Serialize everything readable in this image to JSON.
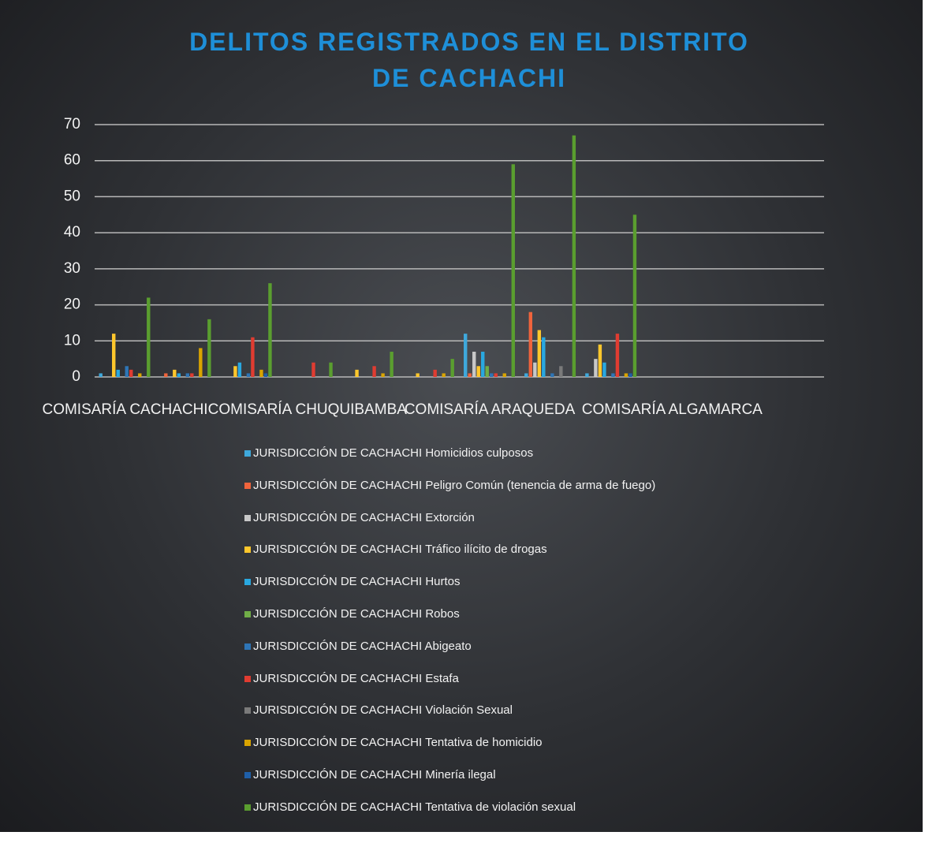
{
  "chart_data": {
    "type": "bar",
    "title": "DELITOS REGISTRADOS EN EL DISTRITO DE CACHACHI",
    "categories": [
      "COMISARÍA CACHACHI",
      null,
      null,
      "COMISARÍA CHUQUIBAMBA",
      null,
      null,
      "COMISARÍA ARAQUEDA",
      null,
      null,
      "COMISARÍA ALGAMARCA",
      null,
      null
    ],
    "series": [
      {
        "name": "JURISDICCIÓN DE CACHACHI Homicidios culposos",
        "color": "#3fa9dc",
        "values": [
          1,
          0,
          0,
          0,
          0,
          0,
          12,
          1,
          1,
          0,
          0,
          0
        ]
      },
      {
        "name": "JURISDICCIÓN DE CACHACHI Peligro Común (tenencia de arma de fuego)",
        "color": "#f0643c",
        "values": [
          0,
          1,
          0,
          0,
          0,
          0,
          1,
          18,
          0,
          0,
          0,
          0
        ]
      },
      {
        "name": "JURISDICCIÓN DE CACHACHI Extorción",
        "color": "#c8c8c8",
        "values": [
          0,
          0,
          0,
          0,
          0,
          0,
          7,
          4,
          5,
          0,
          0,
          0
        ]
      },
      {
        "name": "JURISDICCIÓN DE CACHACHI Tráfico ilícito de drogas",
        "color": "#ffc72c",
        "values": [
          12,
          2,
          3,
          0,
          2,
          1,
          3,
          13,
          9,
          0,
          0,
          0
        ]
      },
      {
        "name": "JURISDICCIÓN DE CACHACHI Hurtos",
        "color": "#29a8e0",
        "values": [
          2,
          1,
          4,
          0,
          0,
          0,
          7,
          11,
          4,
          0,
          0,
          0
        ]
      },
      {
        "name": "JURISDICCIÓN DE CACHACHI Robos",
        "color": "#70ad47",
        "values": [
          0,
          0,
          0,
          0,
          0,
          0,
          3,
          0,
          0,
          0,
          0,
          0
        ]
      },
      {
        "name": "JURISDICCIÓN DE CACHACHI Abigeato",
        "color": "#2e75b6",
        "values": [
          3,
          1,
          1,
          0,
          0,
          0,
          1,
          1,
          1,
          0,
          0,
          0
        ]
      },
      {
        "name": "JURISDICCIÓN DE CACHACHI Estafa",
        "color": "#e03c31",
        "values": [
          2,
          1,
          11,
          4,
          3,
          2,
          1,
          0,
          12,
          0,
          0,
          0
        ]
      },
      {
        "name": "JURISDICCIÓN DE CACHACHI Violación Sexual",
        "color": "#7a7a7a",
        "values": [
          0,
          0,
          0,
          0,
          0,
          0,
          0,
          3,
          0,
          0,
          0,
          0
        ]
      },
      {
        "name": "JURISDICCIÓN DE CACHACHI Tentativa de homicidio",
        "color": "#d9a400",
        "values": [
          1,
          8,
          2,
          0,
          1,
          1,
          1,
          0,
          1,
          0,
          0,
          0
        ]
      },
      {
        "name": "JURISDICCIÓN DE CACHACHI Minería ilegal",
        "color": "#1f5fa8",
        "values": [
          0,
          0,
          1,
          0,
          0,
          0,
          0,
          0,
          1,
          0,
          0,
          0
        ]
      },
      {
        "name": "JURISDICCIÓN DE CACHACHI Tentativa de violación sexual",
        "color": "#5a9e2f",
        "values": [
          22,
          16,
          26,
          4,
          7,
          5,
          59,
          67,
          45,
          0,
          0,
          0
        ]
      }
    ],
    "ylim": [
      0,
      70
    ],
    "yticks": [
      0,
      10,
      20,
      30,
      40,
      50,
      60,
      70
    ],
    "grid": true
  }
}
